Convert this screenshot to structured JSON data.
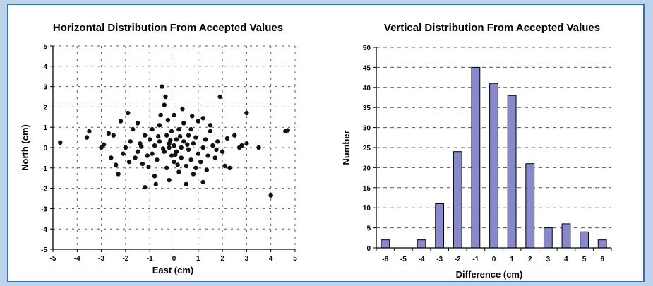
{
  "chart_data": [
    {
      "type": "scatter",
      "title": "Horizontal Distribution From Accepted Values",
      "xlabel": "East (cm)",
      "ylabel": "North (cm)",
      "xlim": [
        -5,
        5
      ],
      "ylim": [
        -5,
        5
      ],
      "xticks": [
        -5,
        -4,
        -3,
        -2,
        -1,
        0,
        1,
        2,
        3,
        4,
        5
      ],
      "yticks": [
        -5,
        -4,
        -3,
        -2,
        -1,
        0,
        1,
        2,
        3,
        4,
        5
      ],
      "grid": true,
      "points": [
        [
          -4.7,
          0.25
        ],
        [
          -3.5,
          0.8
        ],
        [
          -3.6,
          0.5
        ],
        [
          -3.0,
          0.0
        ],
        [
          -2.7,
          0.7
        ],
        [
          -2.5,
          0.6
        ],
        [
          -2.4,
          -0.85
        ],
        [
          -2.3,
          -1.3
        ],
        [
          -2.2,
          1.3
        ],
        [
          -2.0,
          0.0
        ],
        [
          -1.9,
          1.7
        ],
        [
          -1.8,
          0.3
        ],
        [
          -2.1,
          -0.3
        ],
        [
          -1.6,
          -0.5
        ],
        [
          -1.5,
          -0.2
        ],
        [
          -1.4,
          0.2
        ],
        [
          -1.3,
          -0.8
        ],
        [
          -1.2,
          0.6
        ],
        [
          -1.2,
          -1.95
        ],
        [
          -1.1,
          -0.4
        ],
        [
          -1.0,
          0.4
        ],
        [
          -0.9,
          -0.3
        ],
        [
          -0.9,
          0.9
        ],
        [
          -0.8,
          -1.4
        ],
        [
          -0.8,
          0.1
        ],
        [
          -0.7,
          -0.6
        ],
        [
          -0.6,
          0.3
        ],
        [
          -0.6,
          1.1
        ],
        [
          -0.5,
          3.0
        ],
        [
          -0.4,
          2.1
        ],
        [
          -0.4,
          -0.2
        ],
        [
          -0.3,
          0.6
        ],
        [
          -0.3,
          -1.0
        ],
        [
          -0.2,
          0.0
        ],
        [
          -0.2,
          0.2
        ],
        [
          -0.1,
          -0.4
        ],
        [
          -0.1,
          0.8
        ],
        [
          0.0,
          -0.7
        ],
        [
          0.0,
          1.6
        ],
        [
          0.0,
          0.1
        ],
        [
          0.1,
          -0.2
        ],
        [
          0.1,
          0.4
        ],
        [
          0.2,
          -1.2
        ],
        [
          0.2,
          0.9
        ],
        [
          0.3,
          0.0
        ],
        [
          0.3,
          -0.5
        ],
        [
          0.4,
          0.3
        ],
        [
          0.4,
          1.2
        ],
        [
          0.5,
          -0.9
        ],
        [
          0.5,
          -1.8
        ],
        [
          0.6,
          0.6
        ],
        [
          0.6,
          -0.1
        ],
        [
          0.7,
          -0.6
        ],
        [
          0.7,
          0.9
        ],
        [
          0.8,
          0.2
        ],
        [
          0.8,
          -1.3
        ],
        [
          0.9,
          0.5
        ],
        [
          1.0,
          -0.3
        ],
        [
          1.0,
          1.3
        ],
        [
          1.1,
          -0.7
        ],
        [
          1.2,
          0.0
        ],
        [
          1.2,
          1.45
        ],
        [
          1.2,
          -1.7
        ],
        [
          1.3,
          0.4
        ],
        [
          1.4,
          -0.4
        ],
        [
          1.5,
          0.8
        ],
        [
          1.6,
          0.1
        ],
        [
          1.7,
          -0.5
        ],
        [
          1.8,
          0.3
        ],
        [
          1.9,
          2.5
        ],
        [
          2.0,
          -0.2
        ],
        [
          2.1,
          -0.9
        ],
        [
          2.3,
          -1.0
        ],
        [
          2.5,
          0.6
        ],
        [
          2.7,
          0.0
        ],
        [
          2.8,
          0.1
        ],
        [
          3.0,
          0.2
        ],
        [
          3.0,
          1.7
        ],
        [
          3.5,
          0.0
        ],
        [
          4.0,
          -2.35
        ],
        [
          4.6,
          0.8
        ],
        [
          4.7,
          0.85
        ],
        [
          -0.35,
          2.5
        ],
        [
          -0.55,
          1.6
        ],
        [
          0.35,
          1.9
        ],
        [
          -0.75,
          -1.8
        ],
        [
          -1.7,
          0.9
        ],
        [
          -2.6,
          -0.5
        ],
        [
          -0.2,
          -1.6
        ],
        [
          0.9,
          -1.0
        ],
        [
          -1.5,
          1.2
        ],
        [
          1.5,
          1.1
        ],
        [
          -0.45,
          -0.05
        ],
        [
          0.05,
          -0.35
        ],
        [
          0.25,
          0.55
        ],
        [
          -0.65,
          0.55
        ],
        [
          0.55,
          0.15
        ],
        [
          -0.15,
          0.35
        ],
        [
          0.15,
          -0.85
        ],
        [
          -1.05,
          -0.95
        ],
        [
          1.35,
          -1.1
        ],
        [
          2.2,
          0.45
        ],
        [
          -2.9,
          0.15
        ],
        [
          -1.85,
          -0.7
        ],
        [
          0.75,
          1.55
        ],
        [
          -0.25,
          1.35
        ],
        [
          1.75,
          -0.1
        ],
        [
          -1.35,
          0.05
        ]
      ]
    },
    {
      "type": "bar",
      "title": "Vertical Distribution From Accepted Values",
      "xlabel": "Difference (cm)",
      "ylabel": "Number",
      "categories": [
        "-6",
        "-5",
        "-4",
        "-3",
        "-2",
        "-1",
        "0",
        "1",
        "2",
        "3",
        "4",
        "5",
        "6"
      ],
      "values": [
        2,
        0,
        2,
        11,
        24,
        45,
        41,
        38,
        21,
        5,
        6,
        4,
        2
      ],
      "ylim": [
        0,
        50
      ],
      "yticks": [
        0,
        5,
        10,
        15,
        20,
        25,
        30,
        35,
        40,
        45,
        50
      ],
      "grid": true,
      "bar_color": "#8888cc"
    }
  ]
}
